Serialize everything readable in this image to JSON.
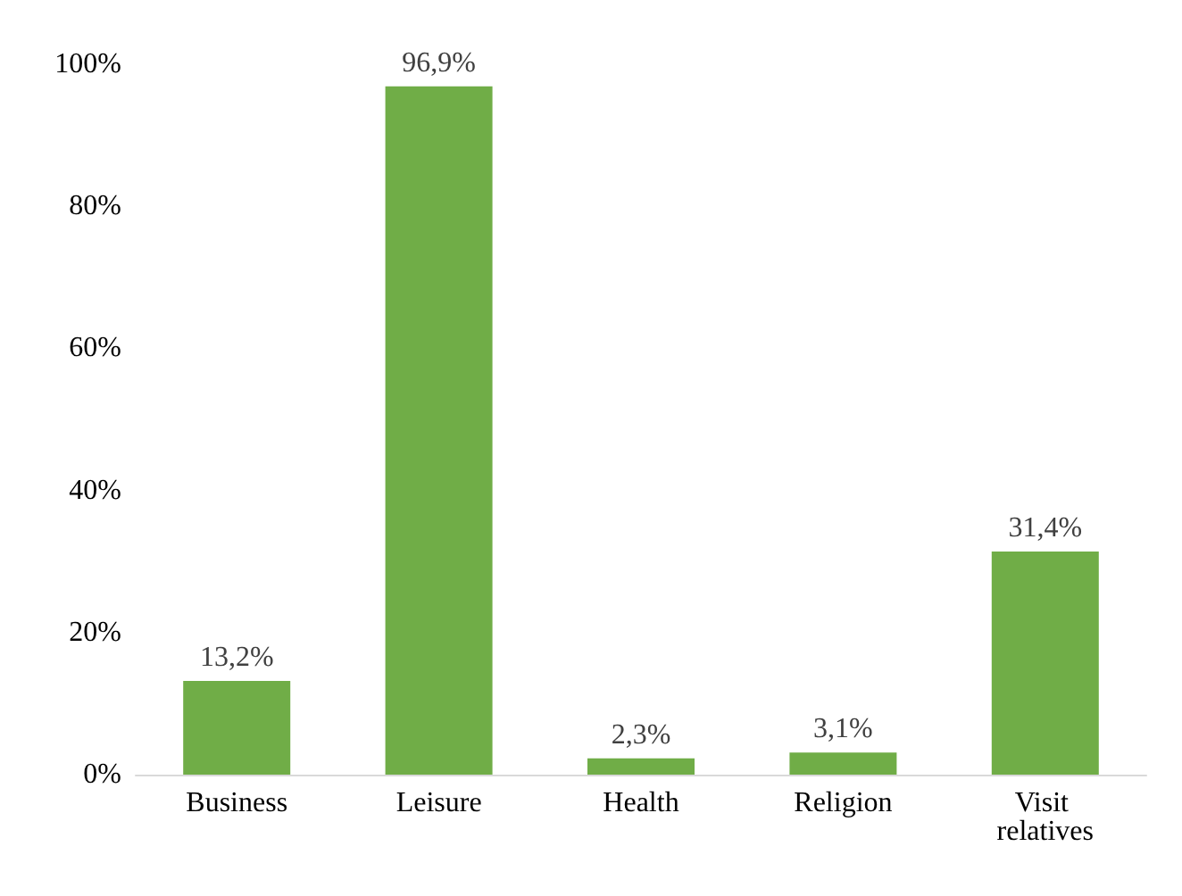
{
  "chart_data": {
    "type": "bar",
    "categories": [
      "Business",
      "Leisure",
      "Health",
      "Religion",
      "Visit relatives"
    ],
    "values": [
      13.2,
      96.9,
      2.3,
      3.1,
      31.4
    ],
    "value_labels": [
      "13,2%",
      "96,9%",
      "2,3%",
      "3,1%",
      "31,4%"
    ],
    "color": "#70ad47",
    "ylim": [
      0,
      100
    ],
    "yticks": [
      {
        "value": 0,
        "label": "0%"
      },
      {
        "value": 20,
        "label": "20%"
      },
      {
        "value": 40,
        "label": "40%"
      },
      {
        "value": 60,
        "label": "60%"
      },
      {
        "value": 80,
        "label": "80%"
      },
      {
        "value": 100,
        "label": "100%"
      }
    ],
    "grid": false
  }
}
